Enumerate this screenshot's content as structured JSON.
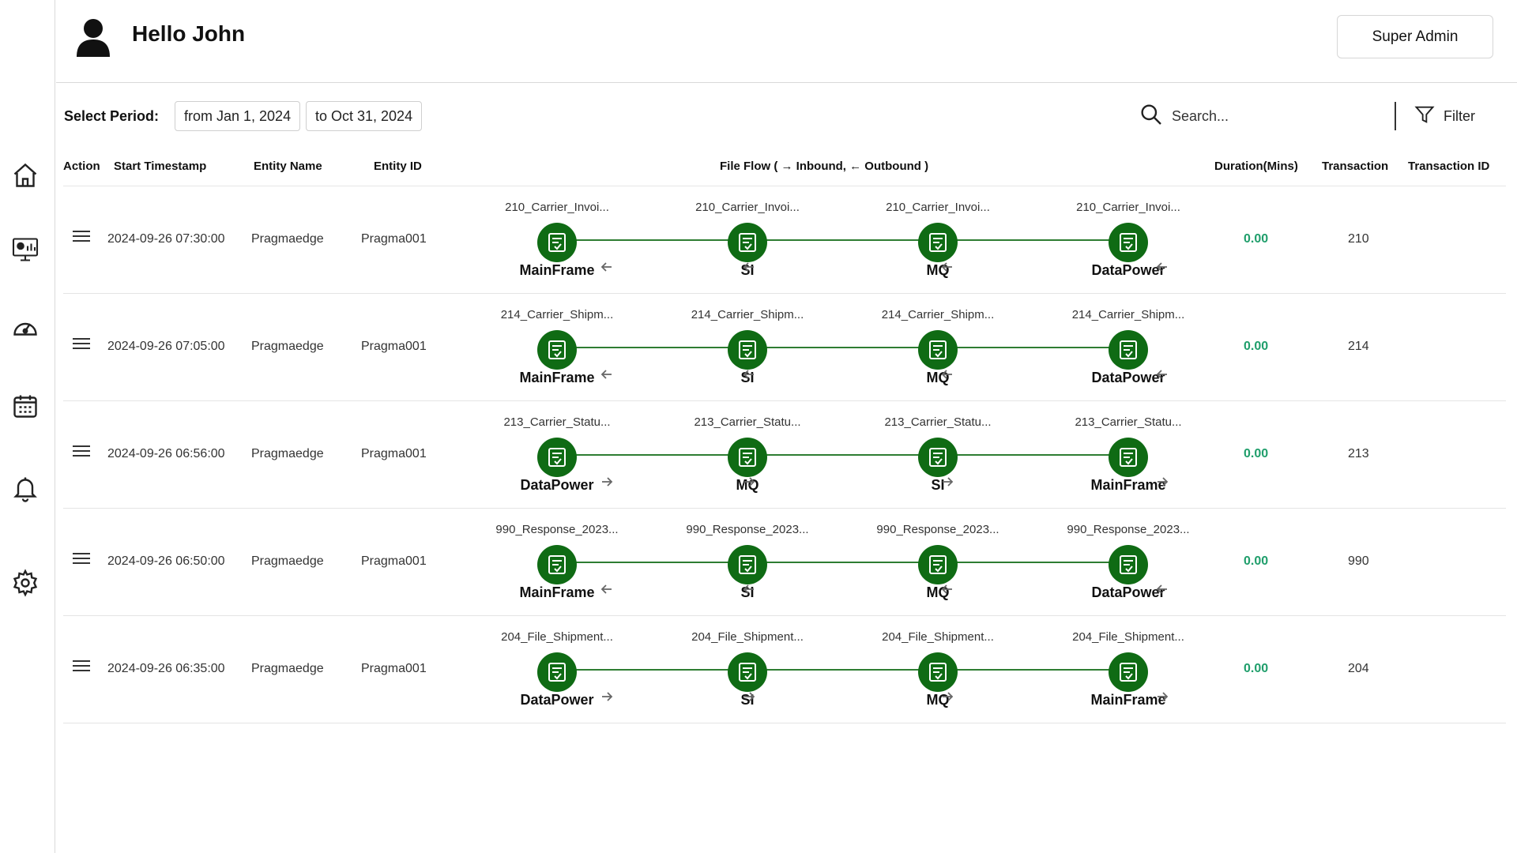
{
  "header": {
    "greeting": "Hello John",
    "role": "Super Admin"
  },
  "toolbar": {
    "period_label": "Select Period:",
    "from": "from Jan 1, 2024",
    "to": "to Oct 31, 2024",
    "search_placeholder": "Search...",
    "filter_label": "Filter"
  },
  "columns": {
    "action": "Action",
    "start": "Start Timestamp",
    "entity_name": "Entity Name",
    "entity_id": "Entity ID",
    "file_flow": "File Flow ( → Inbound, ← Outbound )",
    "duration": "Duration(Mins)",
    "transaction": "Transaction",
    "transaction_id": "Transaction ID"
  },
  "rows": [
    {
      "start": "2024-09-26 07:30:00",
      "entity_name": "Pragmaedge",
      "entity_id": "Pragma001",
      "file": "210_Carrier_Invoi...",
      "direction": "outbound",
      "nodes": [
        "MainFrame",
        "SI",
        "MQ",
        "DataPower"
      ],
      "duration": "0.00",
      "transaction": "210"
    },
    {
      "start": "2024-09-26 07:05:00",
      "entity_name": "Pragmaedge",
      "entity_id": "Pragma001",
      "file": "214_Carrier_Shipm...",
      "direction": "outbound",
      "nodes": [
        "MainFrame",
        "SI",
        "MQ",
        "DataPower"
      ],
      "duration": "0.00",
      "transaction": "214"
    },
    {
      "start": "2024-09-26 06:56:00",
      "entity_name": "Pragmaedge",
      "entity_id": "Pragma001",
      "file": "213_Carrier_Statu...",
      "direction": "inbound",
      "nodes": [
        "DataPower",
        "MQ",
        "SI",
        "MainFrame"
      ],
      "duration": "0.00",
      "transaction": "213"
    },
    {
      "start": "2024-09-26 06:50:00",
      "entity_name": "Pragmaedge",
      "entity_id": "Pragma001",
      "file": "990_Response_2023...",
      "direction": "outbound",
      "nodes": [
        "MainFrame",
        "SI",
        "MQ",
        "DataPower"
      ],
      "duration": "0.00",
      "transaction": "990"
    },
    {
      "start": "2024-09-26 06:35:00",
      "entity_name": "Pragmaedge",
      "entity_id": "Pragma001",
      "file": "204_File_Shipment...",
      "direction": "inbound",
      "nodes": [
        "DataPower",
        "SI",
        "MQ",
        "MainFrame"
      ],
      "duration": "0.00",
      "transaction": "204"
    }
  ],
  "icons": {
    "sidebar": [
      "home-icon",
      "dashboard-monitor-icon",
      "speedometer-icon",
      "calendar-icon",
      "bell-icon",
      "gear-icon"
    ],
    "node": "file-document-icon",
    "row_action": "menu-icon"
  },
  "colors": {
    "node_green": "#0f6b14",
    "line_green": "#2e7d32",
    "duration_teal": "#1f9e6b"
  }
}
